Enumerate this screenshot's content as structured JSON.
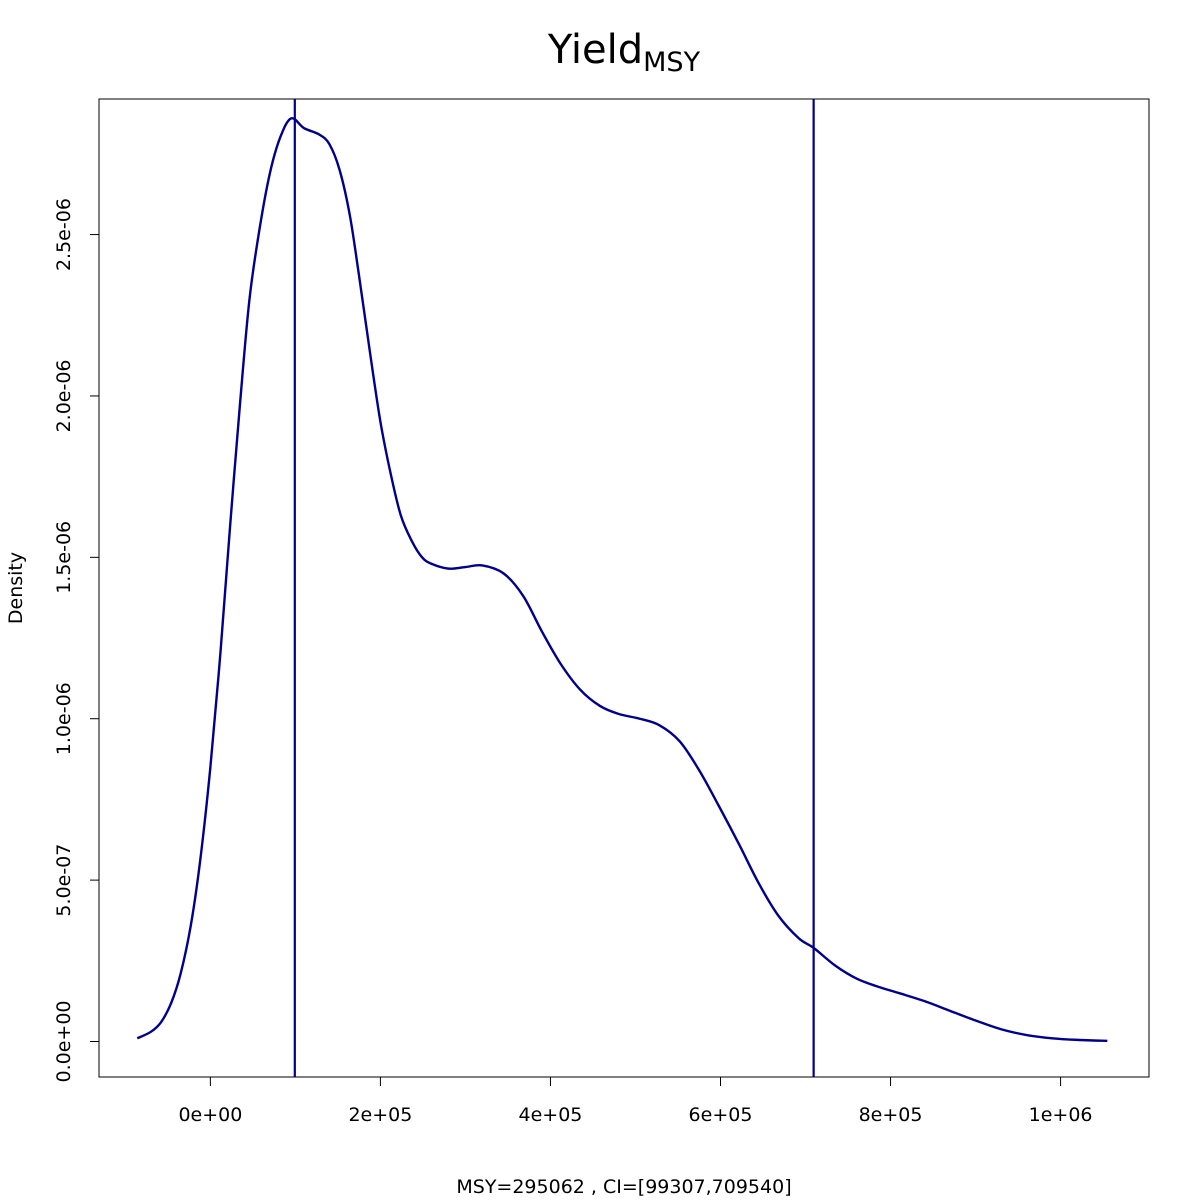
{
  "chart_data": {
    "type": "line",
    "title": "Yield",
    "title_subscript": "MSY",
    "xlabel": "MSY=295062 , CI=[99307,709540]",
    "ylabel": "Density",
    "xlim": [
      -131000,
      1104000
    ],
    "ylim": [
      -1.1e-07,
      2.92e-06
    ],
    "x_ticks": [
      {
        "value": 0,
        "label": "0e+00"
      },
      {
        "value": 200000,
        "label": "2e+05"
      },
      {
        "value": 400000,
        "label": "4e+05"
      },
      {
        "value": 600000,
        "label": "6e+05"
      },
      {
        "value": 800000,
        "label": "8e+05"
      },
      {
        "value": 1000000,
        "label": "1e+06"
      }
    ],
    "y_ticks": [
      {
        "value": 0,
        "label": "0.0e+00"
      },
      {
        "value": 5e-07,
        "label": "5.0e-07"
      },
      {
        "value": 1e-06,
        "label": "1.0e-06"
      },
      {
        "value": 1.5e-06,
        "label": "1.5e-06"
      },
      {
        "value": 2e-06,
        "label": "2.0e-06"
      },
      {
        "value": 2.5e-06,
        "label": "2.5e-06"
      }
    ],
    "grid": false,
    "series": [
      {
        "color": "#00008b",
        "points": [
          [
            -86000,
            1e-08
          ],
          [
            -70000,
            3e-08
          ],
          [
            -58000,
            6e-08
          ],
          [
            -46000,
            1.2e-07
          ],
          [
            -35000,
            2.1e-07
          ],
          [
            -23000,
            3.6e-07
          ],
          [
            -12000,
            5.6e-07
          ],
          [
            0,
            8.5e-07
          ],
          [
            12000,
            1.21e-06
          ],
          [
            23000,
            1.59e-06
          ],
          [
            35000,
            1.98e-06
          ],
          [
            46000,
            2.3e-06
          ],
          [
            58000,
            2.52e-06
          ],
          [
            70000,
            2.69e-06
          ],
          [
            82000,
            2.8e-06
          ],
          [
            95000,
            2.86e-06
          ],
          [
            110000,
            2.83e-06
          ],
          [
            128000,
            2.81e-06
          ],
          [
            140000,
            2.78e-06
          ],
          [
            152000,
            2.7e-06
          ],
          [
            164000,
            2.56e-06
          ],
          [
            175000,
            2.37e-06
          ],
          [
            188000,
            2.13e-06
          ],
          [
            200000,
            1.92e-06
          ],
          [
            212000,
            1.76e-06
          ],
          [
            224000,
            1.63e-06
          ],
          [
            237000,
            1.55e-06
          ],
          [
            249000,
            1.5e-06
          ],
          [
            260000,
            1.48e-06
          ],
          [
            280000,
            1.465e-06
          ],
          [
            300000,
            1.47e-06
          ],
          [
            320000,
            1.475e-06
          ],
          [
            345000,
            1.45e-06
          ],
          [
            368000,
            1.38e-06
          ],
          [
            390000,
            1.27e-06
          ],
          [
            412000,
            1.17e-06
          ],
          [
            435000,
            1.09e-06
          ],
          [
            458000,
            1.04e-06
          ],
          [
            480000,
            1.015e-06
          ],
          [
            505000,
            1e-06
          ],
          [
            528000,
            9.8e-07
          ],
          [
            552000,
            9.3e-07
          ],
          [
            575000,
            8.4e-07
          ],
          [
            598000,
            7.3e-07
          ],
          [
            622000,
            6.1e-07
          ],
          [
            645000,
            4.9e-07
          ],
          [
            668000,
            3.9e-07
          ],
          [
            692000,
            3.2e-07
          ],
          [
            709540,
            2.9e-07
          ],
          [
            735000,
            2.35e-07
          ],
          [
            760000,
            1.95e-07
          ],
          [
            785000,
            1.7e-07
          ],
          [
            810000,
            1.5e-07
          ],
          [
            840000,
            1.25e-07
          ],
          [
            870000,
            9.5e-08
          ],
          [
            900000,
            6.5e-08
          ],
          [
            930000,
            3.8e-08
          ],
          [
            960000,
            2e-08
          ],
          [
            990000,
            1e-08
          ],
          [
            1020000,
            5e-09
          ],
          [
            1055000,
            2e-09
          ]
        ]
      }
    ],
    "vertical_lines": [
      {
        "x": 99307,
        "color": "#00008b"
      },
      {
        "x": 709540,
        "color": "#00008b"
      }
    ]
  }
}
